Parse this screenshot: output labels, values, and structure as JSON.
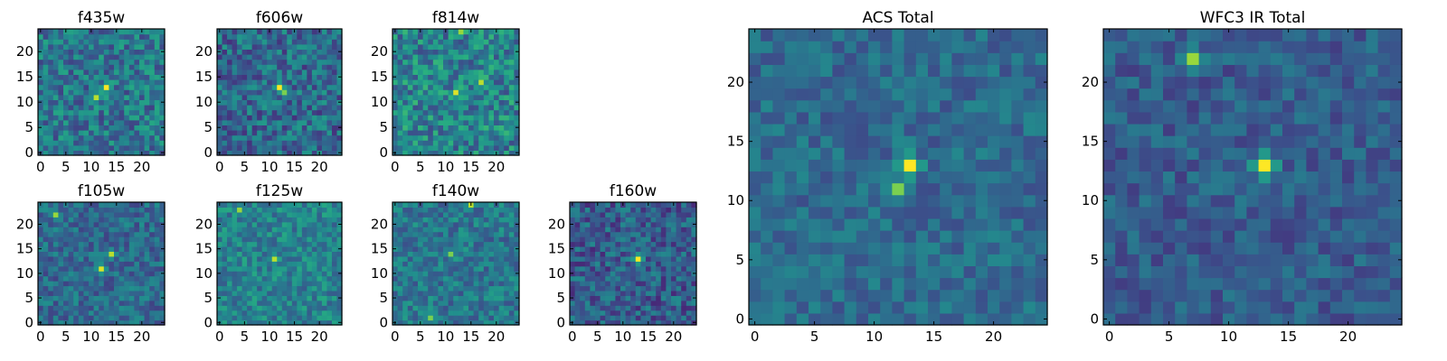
{
  "colormap": "viridis",
  "colors": {
    "background": "#ffffff",
    "frame": "#000000",
    "low": "#440154",
    "high": "#fde725"
  },
  "chart_data": [
    {
      "type": "heatmap",
      "title": "f435w",
      "grid": [
        25,
        25
      ],
      "xlim": [
        0,
        24
      ],
      "ylim": [
        0,
        24
      ],
      "xticks": [
        0,
        5,
        10,
        15,
        20
      ],
      "yticks": [
        0,
        5,
        10,
        15,
        20
      ],
      "peaks": [
        {
          "x": 13,
          "y": 13,
          "value": 1.0
        },
        {
          "x": 11,
          "y": 11,
          "value": 0.9
        }
      ],
      "base": 0.4,
      "noise": 0.2
    },
    {
      "type": "heatmap",
      "title": "f606w",
      "grid": [
        25,
        25
      ],
      "xlim": [
        0,
        24
      ],
      "ylim": [
        0,
        24
      ],
      "xticks": [
        0,
        5,
        10,
        15,
        20
      ],
      "yticks": [
        0,
        5,
        10,
        15,
        20
      ],
      "peaks": [
        {
          "x": 12,
          "y": 13,
          "value": 1.0
        },
        {
          "x": 13,
          "y": 12,
          "value": 0.8
        }
      ],
      "base": 0.35,
      "noise": 0.2
    },
    {
      "type": "heatmap",
      "title": "f814w",
      "grid": [
        25,
        25
      ],
      "xlim": [
        0,
        24
      ],
      "ylim": [
        0,
        24
      ],
      "xticks": [
        0,
        5,
        10,
        15,
        20
      ],
      "yticks": [
        0,
        5,
        10,
        15,
        20
      ],
      "peaks": [
        {
          "x": 12,
          "y": 12,
          "value": 0.95
        },
        {
          "x": 17,
          "y": 14,
          "value": 0.9
        },
        {
          "x": 13,
          "y": 24,
          "value": 0.85
        }
      ],
      "base": 0.45,
      "noise": 0.22
    },
    {
      "type": "heatmap",
      "title": "f105w",
      "grid": [
        25,
        25
      ],
      "xlim": [
        0,
        24
      ],
      "ylim": [
        0,
        24
      ],
      "xticks": [
        0,
        5,
        10,
        15,
        20
      ],
      "yticks": [
        0,
        5,
        10,
        15,
        20
      ],
      "peaks": [
        {
          "x": 12,
          "y": 11,
          "value": 0.95
        },
        {
          "x": 14,
          "y": 14,
          "value": 0.9
        },
        {
          "x": 3,
          "y": 22,
          "value": 0.85
        }
      ],
      "base": 0.35,
      "noise": 0.15
    },
    {
      "type": "heatmap",
      "title": "f125w",
      "grid": [
        25,
        25
      ],
      "xlim": [
        0,
        24
      ],
      "ylim": [
        0,
        24
      ],
      "xticks": [
        0,
        5,
        10,
        15,
        20
      ],
      "yticks": [
        0,
        5,
        10,
        15,
        20
      ],
      "peaks": [
        {
          "x": 11,
          "y": 13,
          "value": 0.9
        },
        {
          "x": 4,
          "y": 23,
          "value": 0.85
        }
      ],
      "base": 0.45,
      "noise": 0.16
    },
    {
      "type": "heatmap",
      "title": "f140w",
      "grid": [
        25,
        25
      ],
      "xlim": [
        0,
        24
      ],
      "ylim": [
        0,
        24
      ],
      "xticks": [
        0,
        5,
        10,
        15,
        20
      ],
      "yticks": [
        0,
        5,
        10,
        15,
        20
      ],
      "peaks": [
        {
          "x": 15,
          "y": 24,
          "value": 0.9
        },
        {
          "x": 11,
          "y": 14,
          "value": 0.8
        },
        {
          "x": 7,
          "y": 1,
          "value": 0.8
        }
      ],
      "base": 0.4,
      "noise": 0.16
    },
    {
      "type": "heatmap",
      "title": "f160w",
      "grid": [
        25,
        25
      ],
      "xlim": [
        0,
        24
      ],
      "ylim": [
        0,
        24
      ],
      "xticks": [
        0,
        5,
        10,
        15,
        20
      ],
      "yticks": [
        0,
        5,
        10,
        15,
        20
      ],
      "peaks": [
        {
          "x": 13,
          "y": 13,
          "value": 1.0
        }
      ],
      "base": 0.3,
      "noise": 0.18
    },
    {
      "type": "heatmap",
      "title": "ACS Total",
      "grid": [
        25,
        25
      ],
      "xlim": [
        0,
        24
      ],
      "ylim": [
        0,
        24
      ],
      "xticks": [
        0,
        5,
        10,
        15,
        20
      ],
      "yticks": [
        0,
        5,
        10,
        15,
        20
      ],
      "peaks": [
        {
          "x": 13,
          "y": 13,
          "value": 1.0
        },
        {
          "x": 12,
          "y": 11,
          "value": 0.8
        }
      ],
      "base": 0.35,
      "noise": 0.12
    },
    {
      "type": "heatmap",
      "title": "WFC3 IR Total",
      "grid": [
        25,
        25
      ],
      "xlim": [
        0,
        24
      ],
      "ylim": [
        0,
        24
      ],
      "xticks": [
        0,
        5,
        10,
        15,
        20
      ],
      "yticks": [
        0,
        5,
        10,
        15,
        20
      ],
      "peaks": [
        {
          "x": 13,
          "y": 13,
          "value": 1.0
        },
        {
          "x": 7,
          "y": 22,
          "value": 0.85
        }
      ],
      "base": 0.3,
      "noise": 0.12
    }
  ]
}
